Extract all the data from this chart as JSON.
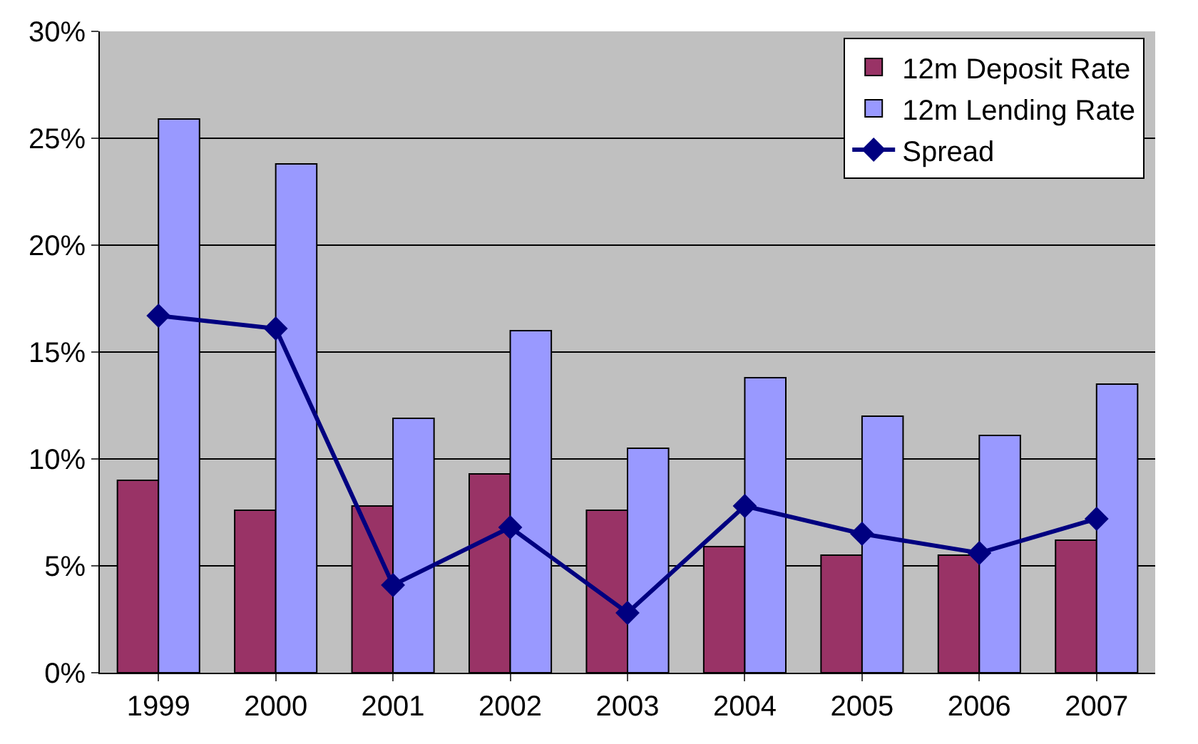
{
  "chart_data": {
    "type": "bar",
    "categories": [
      "1999",
      "2000",
      "2001",
      "2002",
      "2003",
      "2004",
      "2005",
      "2006",
      "2007"
    ],
    "series": [
      {
        "name": "12m Deposit Rate",
        "color": "#993366",
        "values": [
          9.0,
          7.6,
          7.8,
          9.3,
          7.6,
          5.9,
          5.5,
          5.5,
          6.2
        ]
      },
      {
        "name": "12m Lending Rate",
        "color": "#9999ff",
        "values": [
          25.9,
          23.8,
          11.9,
          16.0,
          10.5,
          13.8,
          12.0,
          11.1,
          13.5
        ]
      },
      {
        "name": "Spread",
        "type": "line",
        "color": "#000080",
        "marker": "diamond",
        "values": [
          16.7,
          16.1,
          4.1,
          6.8,
          2.8,
          7.8,
          6.5,
          5.6,
          7.2
        ]
      }
    ],
    "ylim": [
      0,
      30
    ],
    "yticks": [
      {
        "value": 0,
        "label": "0%"
      },
      {
        "value": 5,
        "label": "5%"
      },
      {
        "value": 10,
        "label": "10%"
      },
      {
        "value": 15,
        "label": "15%"
      },
      {
        "value": 20,
        "label": "20%"
      },
      {
        "value": 25,
        "label": "25%"
      },
      {
        "value": 30,
        "label": "30%"
      }
    ],
    "grid": "y",
    "legend": "top right"
  }
}
